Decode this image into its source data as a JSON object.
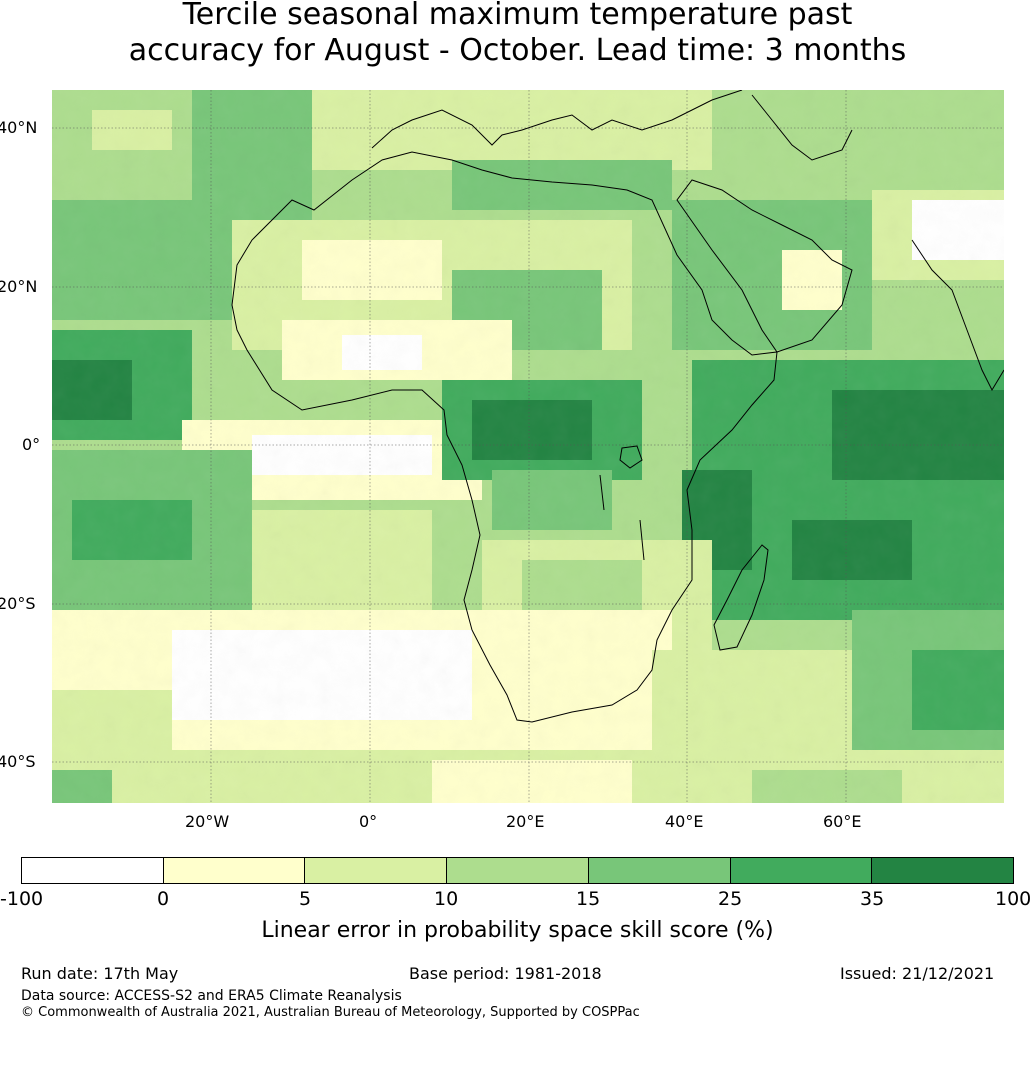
{
  "title": {
    "line1": "Tercile seasonal maximum temperature past",
    "line2": "accuracy for August - October. Lead time: 3 months"
  },
  "map": {
    "lat_labels": [
      "40°N",
      "20°N",
      "0°",
      "20°S",
      "40°S"
    ],
    "lon_labels": [
      "20°W",
      "0°",
      "20°E",
      "40°E",
      "60°E"
    ]
  },
  "colorbar": {
    "colors": [
      "#ffffff",
      "#ffffcc",
      "#d9f0a3",
      "#addd8e",
      "#78c679",
      "#41ab5d",
      "#238443"
    ],
    "ticks": [
      "-100",
      "0",
      "5",
      "10",
      "15",
      "25",
      "35",
      "100"
    ],
    "label": "Linear error in probability space skill score (%)"
  },
  "footer": {
    "run_date": "Run date: 17th May",
    "base_period": "Base period: 1981-2018",
    "issued": "Issued: 21/12/2021",
    "data_source": "Data source: ACCESS-S2 and ERA5 Climate Reanalysis",
    "copyright": "© Commonwealth of Australia 2021, Australian Bureau of Meteorology, Supported by COSPPac"
  }
}
